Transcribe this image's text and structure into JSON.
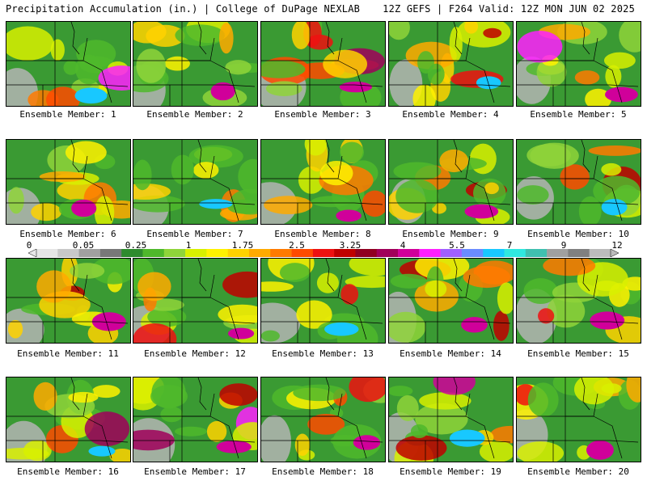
{
  "header": {
    "left": "Precipitation Accumulation (in.) | College of DuPage NEXLAB",
    "right": "12Z GEFS | F264 Valid: 12Z MON JUN 02 2025"
  },
  "members": [
    {
      "label": "Ensemble Member: 1"
    },
    {
      "label": "Ensemble Member: 2"
    },
    {
      "label": "Ensemble Member: 3"
    },
    {
      "label": "Ensemble Member: 4"
    },
    {
      "label": "Ensemble Member: 5"
    },
    {
      "label": "Ensemble Member: 6"
    },
    {
      "label": "Ensemble Member: 7"
    },
    {
      "label": "Ensemble Member: 8"
    },
    {
      "label": "Ensemble Member: 9"
    },
    {
      "label": "Ensemble Member: 10"
    },
    {
      "label": "Ensemble Member: 11"
    },
    {
      "label": "Ensemble Member: 12"
    },
    {
      "label": "Ensemble Member: 13"
    },
    {
      "label": "Ensemble Member: 14"
    },
    {
      "label": "Ensemble Member: 15"
    },
    {
      "label": "Ensemble Member: 16"
    },
    {
      "label": "Ensemble Member: 17"
    },
    {
      "label": "Ensemble Member: 18"
    },
    {
      "label": "Ensemble Member: 19"
    },
    {
      "label": "Ensemble Member: 20"
    }
  ],
  "colorbar": {
    "tick_labels": [
      "0",
      "0.05",
      "0.25",
      "1",
      "1.75",
      "2.5",
      "3.25",
      "4",
      "5.5",
      "7",
      "9",
      "12"
    ],
    "colors": [
      "#e6e6e6",
      "#c8c8c8",
      "#a0a0a0",
      "#787878",
      "#2e8b2e",
      "#4fb82b",
      "#8fd43a",
      "#d8f000",
      "#fff200",
      "#ffd200",
      "#ffaa00",
      "#ff7a00",
      "#ff4a00",
      "#ee1111",
      "#c00000",
      "#900020",
      "#a0005a",
      "#d0009a",
      "#ff20ff",
      "#a060ff",
      "#6a8cff",
      "#18c8ff",
      "#30e8e0",
      "#40c0b0",
      "#a0a0a0",
      "#808080",
      "#bcbcbc"
    ]
  }
}
